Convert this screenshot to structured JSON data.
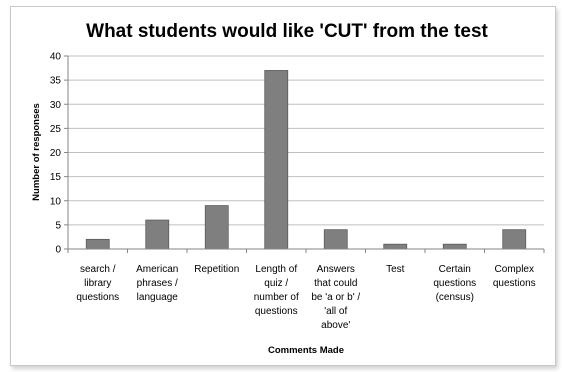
{
  "chart_data": {
    "type": "bar",
    "title": "What students would like 'CUT' from the test",
    "xlabel": "Comments Made",
    "ylabel": "Number of responses",
    "ylim": [
      0,
      40
    ],
    "yticks": [
      "0",
      "5",
      "10",
      "15",
      "20",
      "25",
      "30",
      "35",
      "40"
    ],
    "grid": true,
    "legend": "none",
    "categories": [
      [
        "search /",
        "library",
        "questions"
      ],
      [
        "American",
        "phrases /",
        "language"
      ],
      [
        "Repetition"
      ],
      [
        "Length of",
        "quiz /",
        "number of",
        "questions"
      ],
      [
        "Answers",
        "that could",
        "be 'a or b' /",
        "'all of",
        "above'"
      ],
      [
        "Test"
      ],
      [
        "Certain",
        "questions",
        "(census)"
      ],
      [
        "Complex",
        "questions"
      ]
    ],
    "values": [
      2,
      6,
      9,
      37,
      4,
      1,
      1,
      4
    ],
    "colors": {
      "bar": "#7f7f7f",
      "bar_edge": "#5a5a5a",
      "grid": "#bfbfbf",
      "axis": "#868686"
    }
  }
}
